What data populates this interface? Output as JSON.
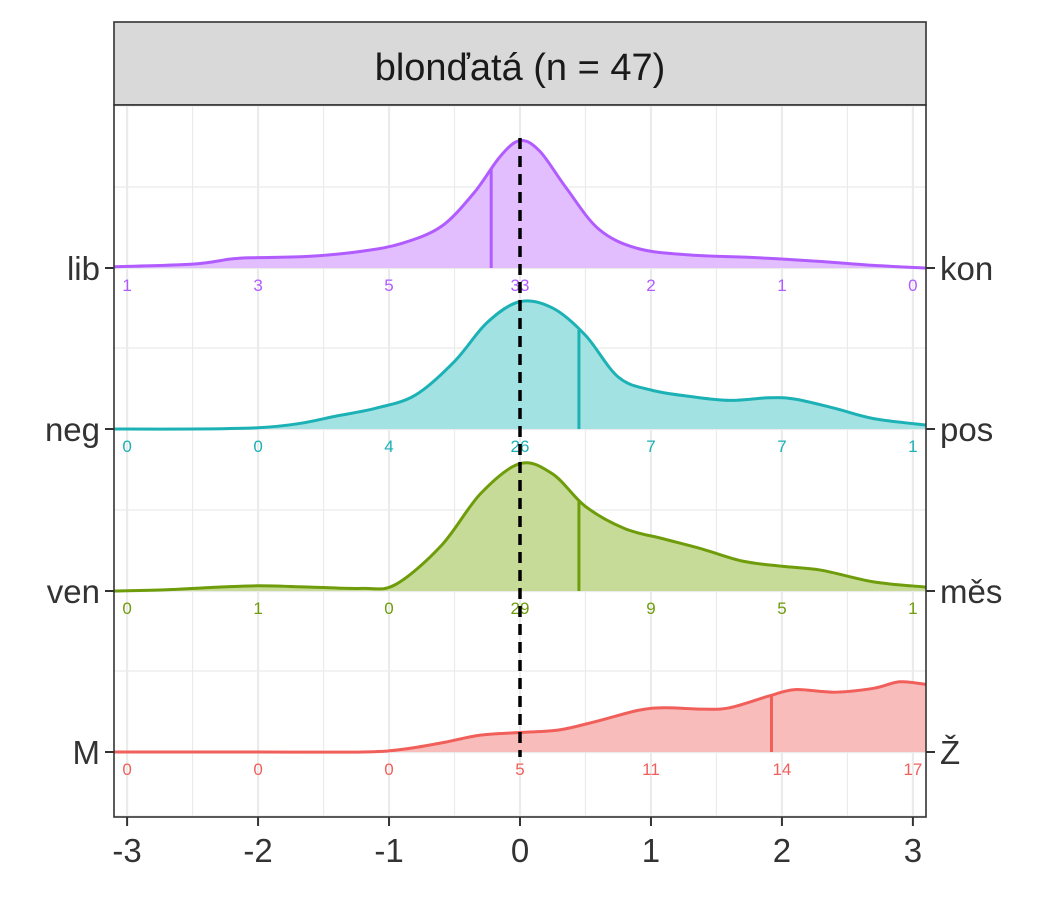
{
  "chart_data": {
    "type": "ridgeline-density",
    "title": "blonďatá (n = 47)",
    "xlim": [
      -3.1,
      3.1
    ],
    "x_ticks": [
      "-3",
      "-2",
      "-1",
      "0",
      "1",
      "2",
      "3"
    ],
    "x_tick_values": [
      -3,
      -2,
      -1,
      0,
      1,
      2,
      3
    ],
    "reference_line_x": 0,
    "grid": true,
    "count_positions": [
      -3,
      -2,
      -1,
      0,
      1,
      2,
      3
    ],
    "series": [
      {
        "left_label": "lib",
        "right_label": "kon",
        "color": "#B15CFF",
        "fill": "#E2BEFF",
        "marker_x": -0.22,
        "counts": [
          "1",
          "3",
          "5",
          "33",
          "2",
          "1",
          "0"
        ],
        "density_x": [
          -3.1,
          -2.5,
          -2.2,
          -2.0,
          -1.6,
          -1.2,
          -0.9,
          -0.6,
          -0.35,
          -0.15,
          0,
          0.15,
          0.35,
          0.6,
          0.9,
          1.3,
          1.8,
          2.3,
          2.7,
          3.1
        ],
        "density_y": [
          0.01,
          0.03,
          0.07,
          0.08,
          0.09,
          0.13,
          0.19,
          0.32,
          0.58,
          0.86,
          0.98,
          0.9,
          0.62,
          0.3,
          0.15,
          0.1,
          0.08,
          0.05,
          0.02,
          0.0
        ]
      },
      {
        "left_label": "neg",
        "right_label": "pos",
        "color": "#1CB1B5",
        "fill": "#A3E2E2",
        "marker_x": 0.45,
        "counts": [
          "0",
          "0",
          "4",
          "26",
          "7",
          "7",
          "1"
        ],
        "density_x": [
          -3.1,
          -2.5,
          -2.0,
          -1.7,
          -1.4,
          -1.1,
          -0.8,
          -0.5,
          -0.25,
          0,
          0.25,
          0.5,
          0.75,
          1.0,
          1.3,
          1.6,
          1.9,
          2.1,
          2.4,
          2.7,
          3.1
        ],
        "density_y": [
          0.0,
          0.0,
          0.01,
          0.04,
          0.1,
          0.16,
          0.26,
          0.52,
          0.82,
          0.98,
          0.93,
          0.72,
          0.4,
          0.3,
          0.25,
          0.22,
          0.24,
          0.23,
          0.16,
          0.08,
          0.03
        ]
      },
      {
        "left_label": "ven",
        "right_label": "měs",
        "color": "#6E9C0A",
        "fill": "#C7DB98",
        "marker_x": 0.45,
        "counts": [
          "0",
          "1",
          "0",
          "29",
          "9",
          "5",
          "1"
        ],
        "density_x": [
          -3.1,
          -2.7,
          -2.3,
          -2.0,
          -1.6,
          -1.2,
          -0.95,
          -0.6,
          -0.3,
          0,
          0.25,
          0.5,
          0.8,
          1.1,
          1.4,
          1.7,
          2.0,
          2.3,
          2.7,
          3.1
        ],
        "density_y": [
          0.0,
          0.01,
          0.03,
          0.04,
          0.03,
          0.02,
          0.05,
          0.35,
          0.75,
          0.98,
          0.9,
          0.65,
          0.48,
          0.4,
          0.32,
          0.23,
          0.19,
          0.16,
          0.07,
          0.03
        ]
      },
      {
        "left_label": "M",
        "right_label": "Ž",
        "color": "#F15F5B",
        "fill": "#F8BDBB",
        "marker_x": 1.92,
        "counts": [
          "0",
          "0",
          "0",
          "5",
          "11",
          "14",
          "17"
        ],
        "density_x": [
          -3.1,
          -2.0,
          -1.2,
          -0.9,
          -0.6,
          -0.3,
          0,
          0.3,
          0.6,
          0.9,
          1.1,
          1.4,
          1.6,
          1.9,
          2.1,
          2.4,
          2.7,
          2.9,
          3.1
        ],
        "density_y": [
          0.0,
          0.0,
          0.0,
          0.02,
          0.07,
          0.13,
          0.15,
          0.17,
          0.24,
          0.32,
          0.34,
          0.33,
          0.34,
          0.43,
          0.48,
          0.46,
          0.49,
          0.54,
          0.52
        ]
      }
    ]
  }
}
